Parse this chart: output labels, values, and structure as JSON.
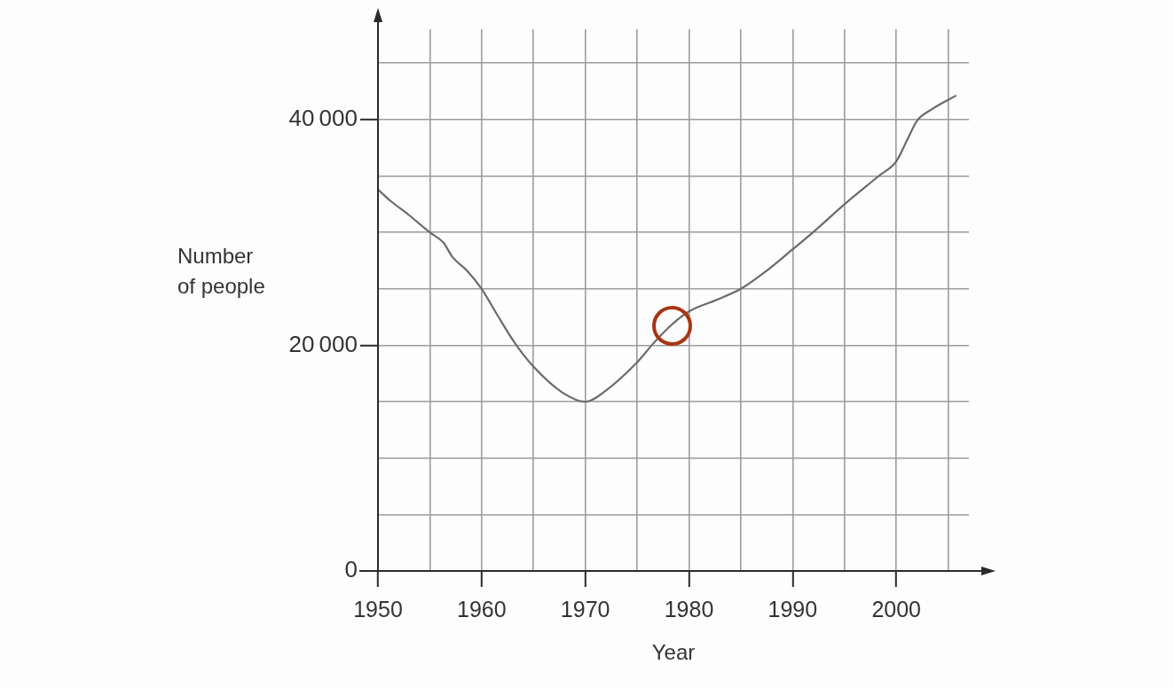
{
  "chart_data": {
    "type": "line",
    "xlabel": "Year",
    "ylabel": "Number of people",
    "x": [
      1950,
      1951.2,
      1952.9,
      1955,
      1956.3,
      1957.2,
      1958.6,
      1960,
      1961.5,
      1963.2,
      1965,
      1967.8,
      1970,
      1972,
      1974.9,
      1976.6,
      1978.3,
      1980,
      1982.6,
      1985,
      1987.2,
      1990,
      1992.2,
      1995,
      1998.3,
      2000,
      2001.1,
      2002,
      2003.4,
      2005.7
    ],
    "values": [
      33800,
      32800,
      31600,
      30000,
      29100,
      27800,
      26600,
      25000,
      22700,
      20200,
      18100,
      15800,
      15000,
      16000,
      18400,
      20200,
      21800,
      23000,
      24000,
      25000,
      26400,
      28500,
      30200,
      32500,
      35000,
      36300,
      38300,
      39900,
      40900,
      42100
    ],
    "color": "#6b6b6b",
    "marker": "none",
    "grid": true,
    "xlim": [
      1950,
      2007
    ],
    "ylim": [
      0,
      48000
    ],
    "xticks": [
      1950,
      {
        "value": 1955,
        "label": null
      },
      1960,
      {
        "value": 1965,
        "label": null
      },
      1970,
      {
        "value": 1975,
        "label": null
      },
      1980,
      {
        "value": 1985,
        "label": null
      },
      1990,
      {
        "value": 1995,
        "label": null
      },
      2000,
      {
        "value": 2005,
        "label": null
      }
    ],
    "yticks": [
      0,
      {
        "value": 5000,
        "label": null
      },
      {
        "value": 10000,
        "label": null
      },
      {
        "value": 15000,
        "label": null
      },
      {
        "value": 20000,
        "label": "20 000"
      },
      {
        "value": 25000,
        "label": null
      },
      {
        "value": 30000,
        "label": null
      },
      {
        "value": 35000,
        "label": null
      },
      {
        "value": 40000,
        "label": "40 000"
      },
      {
        "value": 45000,
        "label": null
      }
    ]
  }
}
